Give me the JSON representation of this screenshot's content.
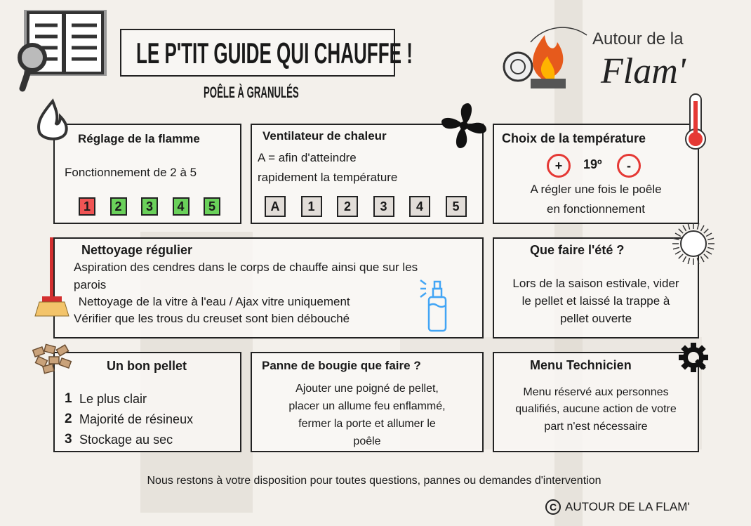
{
  "header": {
    "title": "LE P'TIT GUIDE QUI CHAUFFE !",
    "subtitle": "POÊLE À GRANULÉS",
    "logo_line1": "Autour de la",
    "logo_line2": "Flam'"
  },
  "colors": {
    "red": "#f05454",
    "green": "#6ad15a",
    "key_grey": "#e2ddd8",
    "accent_red": "#e53935"
  },
  "flamme": {
    "title": "Réglage de la flamme",
    "text": "Fonctionnement de 2 à 5",
    "keys": [
      {
        "label": "1",
        "color": "#f05454"
      },
      {
        "label": "2",
        "color": "#6ad15a"
      },
      {
        "label": "3",
        "color": "#6ad15a"
      },
      {
        "label": "4",
        "color": "#6ad15a"
      },
      {
        "label": "5",
        "color": "#6ad15a"
      }
    ],
    "icon": "flame-icon"
  },
  "ventilateur": {
    "title": "Ventilateur de chaleur",
    "line1": "A = afin d'atteindre",
    "line2": "rapidement la température",
    "keys": [
      "A",
      "1",
      "2",
      "3",
      "4",
      "5"
    ],
    "icon": "fan-icon"
  },
  "temperature": {
    "title": "Choix de la température",
    "plus": "+",
    "value": "19º",
    "minus": "-",
    "line1": "A régler une fois le poêle",
    "line2": "en fonctionnement",
    "icon": "thermometer-icon"
  },
  "nettoyage": {
    "title": "Nettoyage régulier",
    "lines": [
      "Aspiration des cendres dans le corps de chauffe ainsi que sur les",
      "parois",
      " Nettoyage de la vitre à l'eau / Ajax vitre uniquement",
      "Vérifier que les trous du creuset sont bien débouché"
    ],
    "icons": [
      "broom-icon",
      "spray-bottle-icon"
    ]
  },
  "ete": {
    "title": "Que faire l'été ?",
    "lines": [
      "Lors de la saison estivale, vider",
      "le pellet et laissé la trappe à",
      "pellet ouverte"
    ],
    "icon": "sun-icon"
  },
  "pellet": {
    "title": "Un bon pellet",
    "items": [
      {
        "num": "1",
        "text": "Le plus clair"
      },
      {
        "num": "2",
        "text": "Majorité de résineux"
      },
      {
        "num": "3",
        "text": "Stockage au sec"
      }
    ],
    "icon": "pellets-icon"
  },
  "bougie": {
    "title": "Panne de bougie que faire ?",
    "lines": [
      "Ajouter une poigné de pellet,",
      "placer un allume feu enflammé,",
      "fermer la porte et allumer le",
      "poêle"
    ]
  },
  "technicien": {
    "title": "Menu Technicien",
    "lines": [
      "Menu réservé aux personnes",
      "qualifiés, aucune action de votre",
      "part n'est nécessaire"
    ],
    "icon": "gear-wrench-icon"
  },
  "footer": {
    "text": "Nous restons à votre disposition pour toutes questions, pannes ou demandes d'intervention",
    "copyright": "AUTOUR DE LA FLAM'"
  }
}
